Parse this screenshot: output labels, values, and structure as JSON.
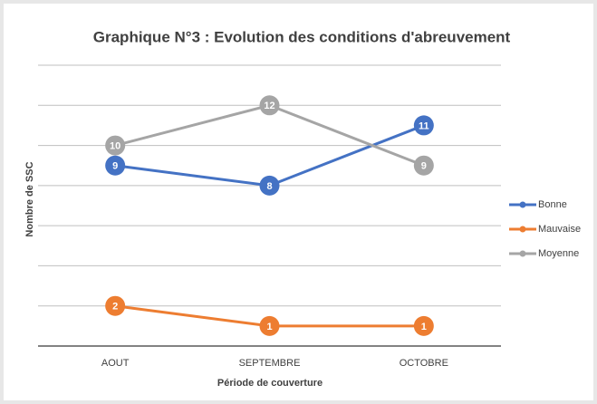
{
  "chart_data": {
    "type": "line",
    "title": "Graphique N°3 : Evolution des conditions d'abreuvement",
    "x_label": "Période de couverture",
    "y_label": "Nombre de SSC",
    "categories": [
      "AOUT",
      "SEPTEMBRE",
      "OCTOBRE"
    ],
    "series": [
      {
        "name": "Bonne",
        "color": "#4472c4",
        "values": [
          9,
          8,
          11
        ]
      },
      {
        "name": "Mauvaise",
        "color": "#ed7d31",
        "values": [
          2,
          1,
          1
        ]
      },
      {
        "name": "Moyenne",
        "color": "#a5a5a5",
        "values": [
          10,
          12,
          9
        ]
      }
    ],
    "ylim": [
      0,
      14
    ],
    "yticks": [
      0,
      2,
      4,
      6,
      8,
      10,
      12,
      14
    ],
    "grid": true,
    "legend": "right"
  }
}
